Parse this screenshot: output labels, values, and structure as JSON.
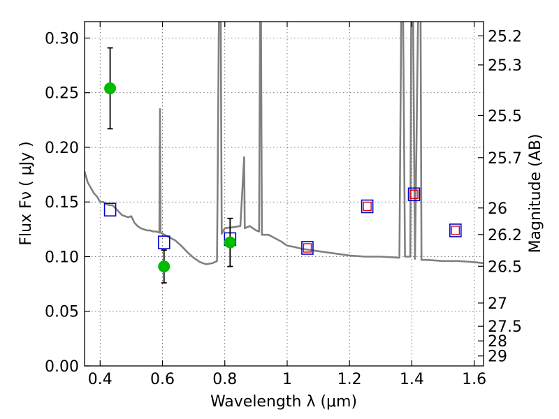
{
  "chart_data": {
    "type": "scatter",
    "xlabel": "Wavelength  λ (μm)",
    "ylabel": "Flux  Fν  ( μJy )",
    "y2label": "Magnitude (AB)",
    "xlim": [
      0.35,
      1.63
    ],
    "ylim": [
      0.0,
      0.315
    ],
    "grid": true,
    "x_ticks": [
      0.4,
      0.6,
      0.8,
      1.0,
      1.2,
      1.4,
      1.6
    ],
    "x_tick_labels": [
      "0.4",
      "0.6",
      "0.8",
      "1",
      "1.2",
      "1.4",
      "1.6"
    ],
    "y_ticks": [
      0.0,
      0.05,
      0.1,
      0.15,
      0.2,
      0.25,
      0.3
    ],
    "y_tick_labels": [
      "0.00",
      "0.05",
      "0.10",
      "0.15",
      "0.20",
      "0.25",
      "0.30"
    ],
    "mag_tick_labels": [
      "25.2",
      "25.3",
      "25.5",
      "25.7",
      "26",
      "26.2",
      "26.5",
      "27",
      "27.5",
      "28",
      "29"
    ],
    "colors": {
      "spectrum": "#808080",
      "observed": "#00bb00",
      "model_outer": "#0000cc",
      "model_inner": "#dd0000"
    },
    "series": [
      {
        "type": "line",
        "points": [
          [
            0.35,
            0.178
          ],
          [
            0.36,
            0.168
          ],
          [
            0.37,
            0.163
          ],
          [
            0.38,
            0.158
          ],
          [
            0.39,
            0.155
          ],
          [
            0.4,
            0.15
          ],
          [
            0.41,
            0.15
          ],
          [
            0.42,
            0.148
          ],
          [
            0.43,
            0.147
          ],
          [
            0.44,
            0.147
          ],
          [
            0.45,
            0.144
          ],
          [
            0.46,
            0.141
          ],
          [
            0.47,
            0.138
          ],
          [
            0.48,
            0.137
          ],
          [
            0.49,
            0.136
          ],
          [
            0.5,
            0.137
          ],
          [
            0.51,
            0.131
          ],
          [
            0.52,
            0.128
          ],
          [
            0.53,
            0.126
          ],
          [
            0.54,
            0.125
          ],
          [
            0.55,
            0.124
          ],
          [
            0.56,
            0.124
          ],
          [
            0.57,
            0.123
          ],
          [
            0.58,
            0.123
          ],
          [
            0.59,
            0.122
          ],
          [
            0.592,
            0.235
          ],
          [
            0.594,
            0.122
          ],
          [
            0.6,
            0.121
          ],
          [
            0.62,
            0.118
          ],
          [
            0.64,
            0.115
          ],
          [
            0.66,
            0.11
          ],
          [
            0.68,
            0.104
          ],
          [
            0.7,
            0.099
          ],
          [
            0.72,
            0.095
          ],
          [
            0.74,
            0.093
          ],
          [
            0.76,
            0.094
          ],
          [
            0.775,
            0.096
          ],
          [
            0.781,
            0.318
          ],
          [
            0.787,
            0.318
          ],
          [
            0.79,
            0.121
          ],
          [
            0.8,
            0.126
          ],
          [
            0.83,
            0.127
          ],
          [
            0.85,
            0.128
          ],
          [
            0.862,
            0.191
          ],
          [
            0.864,
            0.126
          ],
          [
            0.88,
            0.128
          ],
          [
            0.9,
            0.124
          ],
          [
            0.91,
            0.123
          ],
          [
            0.913,
            0.318
          ],
          [
            0.916,
            0.318
          ],
          [
            0.919,
            0.12
          ],
          [
            0.94,
            0.12
          ],
          [
            0.96,
            0.117
          ],
          [
            0.98,
            0.114
          ],
          [
            1.0,
            0.11
          ],
          [
            1.02,
            0.109
          ],
          [
            1.05,
            0.107
          ],
          [
            1.1,
            0.105
          ],
          [
            1.15,
            0.103
          ],
          [
            1.2,
            0.101
          ],
          [
            1.25,
            0.1
          ],
          [
            1.3,
            0.1
          ],
          [
            1.36,
            0.099
          ],
          [
            1.366,
            0.318
          ],
          [
            1.372,
            0.318
          ],
          [
            1.378,
            0.1
          ],
          [
            1.395,
            0.1
          ],
          [
            1.398,
            0.318
          ],
          [
            1.404,
            0.318
          ],
          [
            1.41,
            0.098
          ],
          [
            1.42,
            0.318
          ],
          [
            1.428,
            0.318
          ],
          [
            1.431,
            0.097
          ],
          [
            1.45,
            0.097
          ],
          [
            1.5,
            0.096
          ],
          [
            1.55,
            0.096
          ],
          [
            1.6,
            0.095
          ],
          [
            1.63,
            0.094
          ]
        ]
      },
      {
        "type": "errorbar",
        "points": [
          {
            "x": 0.432,
            "y": 0.254,
            "yerr_lo": 0.217,
            "yerr_hi": 0.291
          },
          {
            "x": 0.605,
            "y": 0.091,
            "yerr_lo": 0.076,
            "yerr_hi": 0.106
          },
          {
            "x": 0.817,
            "y": 0.113,
            "yerr_lo": 0.091,
            "yerr_hi": 0.135
          }
        ]
      },
      {
        "type": "scatter",
        "marker": "square",
        "points": [
          {
            "x": 0.432,
            "y": 0.143
          },
          {
            "x": 0.605,
            "y": 0.113
          },
          {
            "x": 0.817,
            "y": 0.116
          },
          {
            "x": 1.065,
            "y": 0.108
          },
          {
            "x": 1.257,
            "y": 0.146
          },
          {
            "x": 1.407,
            "y": 0.157
          },
          {
            "x": 1.54,
            "y": 0.124
          }
        ]
      },
      {
        "type": "scatter",
        "marker": "square",
        "points": [
          {
            "x": 1.065,
            "y": 0.108
          },
          {
            "x": 1.257,
            "y": 0.146
          },
          {
            "x": 1.407,
            "y": 0.157
          },
          {
            "x": 1.54,
            "y": 0.124
          }
        ]
      }
    ]
  }
}
